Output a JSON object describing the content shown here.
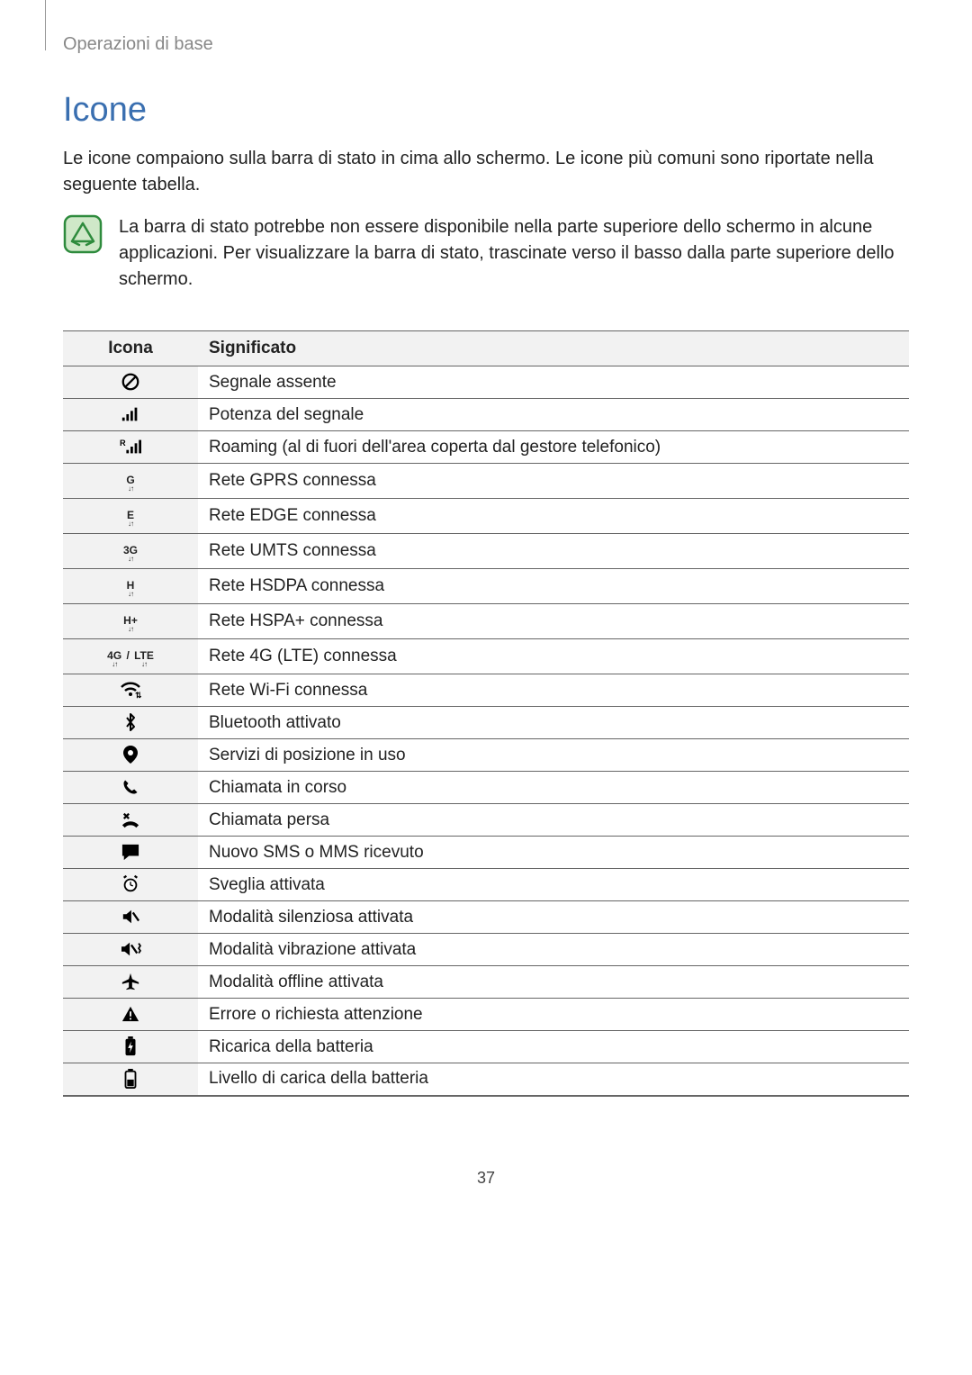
{
  "breadcrumb": "Operazioni di base",
  "heading": "Icone",
  "intro": "Le icone compaiono sulla barra di stato in cima allo schermo. Le icone più comuni sono riportate nella seguente tabella.",
  "note": "La barra di stato potrebbe non essere disponibile nella parte superiore dello schermo in alcune applicazioni. Per visualizzare la barra di stato, trascinate verso il basso dalla parte superiore dello schermo.",
  "table": {
    "headers": {
      "icon": "Icona",
      "meaning": "Significato"
    },
    "rows": [
      {
        "icon_name": "no-signal-icon",
        "meaning": "Segnale assente"
      },
      {
        "icon_name": "signal-strength-icon",
        "meaning": "Potenza del segnale"
      },
      {
        "icon_name": "roaming-icon",
        "meaning": "Roaming (al di fuori dell'area coperta dal gestore telefonico)"
      },
      {
        "icon_name": "gprs-icon",
        "label": "G",
        "meaning": "Rete GPRS connessa"
      },
      {
        "icon_name": "edge-icon",
        "label": "E",
        "meaning": "Rete EDGE connessa"
      },
      {
        "icon_name": "umts-icon",
        "label": "3G",
        "meaning": "Rete UMTS connessa"
      },
      {
        "icon_name": "hsdpa-icon",
        "label": "H",
        "meaning": "Rete HSDPA connessa"
      },
      {
        "icon_name": "hspa-plus-icon",
        "label": "H+",
        "meaning": "Rete HSPA+ connessa"
      },
      {
        "icon_name": "lte-icon",
        "label": "4G",
        "label2": "LTE",
        "sep": "/",
        "meaning": "Rete 4G (LTE) connessa"
      },
      {
        "icon_name": "wifi-icon",
        "meaning": "Rete Wi-Fi connessa"
      },
      {
        "icon_name": "bluetooth-icon",
        "meaning": "Bluetooth attivato"
      },
      {
        "icon_name": "location-icon",
        "meaning": "Servizi di posizione in uso"
      },
      {
        "icon_name": "call-active-icon",
        "meaning": "Chiamata in corso"
      },
      {
        "icon_name": "missed-call-icon",
        "meaning": "Chiamata persa"
      },
      {
        "icon_name": "new-message-icon",
        "meaning": "Nuovo SMS o MMS ricevuto"
      },
      {
        "icon_name": "alarm-icon",
        "meaning": "Sveglia attivata"
      },
      {
        "icon_name": "silent-mode-icon",
        "meaning": "Modalità silenziosa attivata"
      },
      {
        "icon_name": "vibrate-mode-icon",
        "meaning": "Modalità vibrazione attivata"
      },
      {
        "icon_name": "airplane-mode-icon",
        "meaning": "Modalità offline attivata"
      },
      {
        "icon_name": "warning-icon",
        "meaning": "Errore o richiesta attenzione"
      },
      {
        "icon_name": "battery-charging-icon",
        "meaning": "Ricarica della batteria"
      },
      {
        "icon_name": "battery-level-icon",
        "meaning": "Livello di carica della batteria"
      }
    ]
  },
  "page_number": "37",
  "colors": {
    "heading": "#3a6fb0",
    "breadcrumb": "#888888",
    "text": "#222222",
    "rule": "#666666",
    "row_bg": "#f2f2f2",
    "note_stroke": "#2e8b3d",
    "note_fill": "#cfe8c8"
  }
}
